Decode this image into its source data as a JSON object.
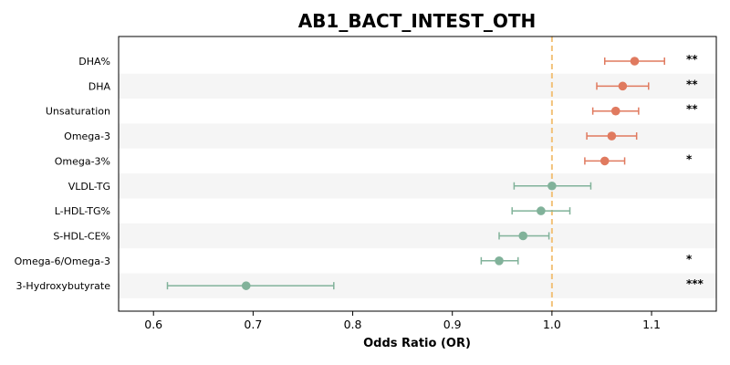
{
  "chart_data": {
    "type": "scatter",
    "title": "AB1_BACT_INTEST_OTH",
    "xlabel": "Odds Ratio (OR)",
    "ylabel": "",
    "xlim": [
      0.565,
      1.165
    ],
    "xticks": [
      "0.6",
      "0.7",
      "0.8",
      "0.9",
      "1.0",
      "1.1"
    ],
    "reference_line": 1.0,
    "grid": false,
    "colors": {
      "positive": "#e07a5f",
      "negative": "#81b29a",
      "reference": "#f2c27a",
      "band": "#f5f5f5"
    },
    "rows": [
      {
        "label": "DHA%",
        "or": 1.083,
        "lo": 1.053,
        "hi": 1.113,
        "sig": "**",
        "dir": "positive"
      },
      {
        "label": "DHA",
        "or": 1.071,
        "lo": 1.045,
        "hi": 1.097,
        "sig": "**",
        "dir": "positive"
      },
      {
        "label": "Unsaturation",
        "or": 1.064,
        "lo": 1.041,
        "hi": 1.087,
        "sig": "**",
        "dir": "positive"
      },
      {
        "label": "Omega-3",
        "or": 1.06,
        "lo": 1.035,
        "hi": 1.085,
        "sig": "",
        "dir": "positive"
      },
      {
        "label": "Omega-3%",
        "or": 1.053,
        "lo": 1.033,
        "hi": 1.073,
        "sig": "*",
        "dir": "positive"
      },
      {
        "label": "VLDL-TG",
        "or": 1.0,
        "lo": 0.962,
        "hi": 1.039,
        "sig": "",
        "dir": "negative"
      },
      {
        "label": "L-HDL-TG%",
        "or": 0.989,
        "lo": 0.96,
        "hi": 1.018,
        "sig": "",
        "dir": "negative"
      },
      {
        "label": "S-HDL-CE%",
        "or": 0.971,
        "lo": 0.947,
        "hi": 0.997,
        "sig": "",
        "dir": "negative"
      },
      {
        "label": "Omega-6/Omega-3",
        "or": 0.947,
        "lo": 0.929,
        "hi": 0.966,
        "sig": "*",
        "dir": "negative"
      },
      {
        "label": "3-Hydroxybutyrate",
        "or": 0.693,
        "lo": 0.614,
        "hi": 0.781,
        "sig": "***",
        "dir": "negative"
      }
    ]
  }
}
